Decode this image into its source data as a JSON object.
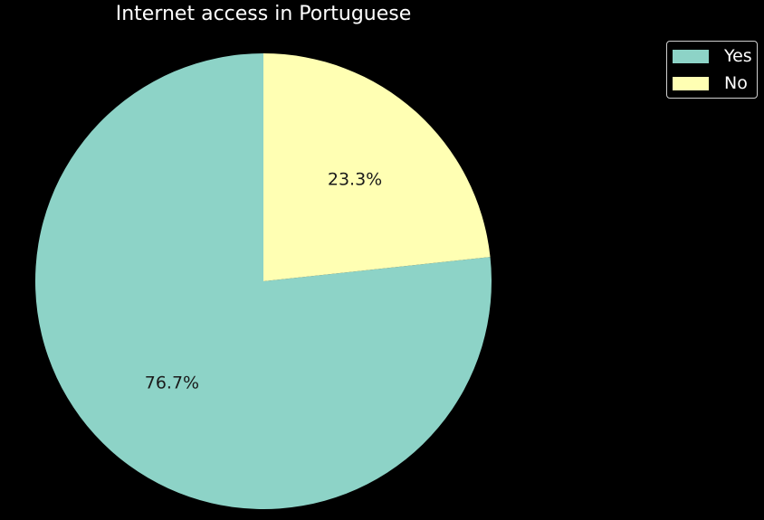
{
  "chart_data": {
    "type": "pie",
    "title": "Internet access in Portuguese",
    "categories": [
      "Yes",
      "No"
    ],
    "values": [
      76.7,
      23.3
    ],
    "labels": [
      "76.7%",
      "23.3%"
    ],
    "colors": [
      "#8dd3c7",
      "#ffffb3"
    ],
    "start_angle_deg": 90,
    "direction": "counterclockwise",
    "legend": {
      "placement": "upper-right",
      "items": [
        "Yes",
        "No"
      ]
    }
  }
}
